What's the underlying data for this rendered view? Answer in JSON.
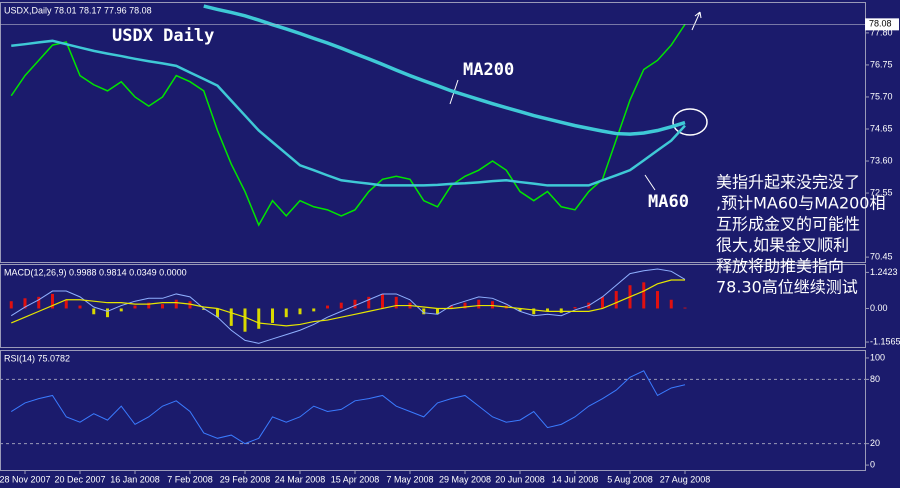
{
  "chart_data": [
    {
      "type": "line",
      "header": "USDX,Daily 78.01 78.17 77.96 78.08",
      "annotations": [
        "USDX Daily",
        "MA200",
        "MA60"
      ],
      "note_lines": [
        "美指升起来没完没了",
        ",预计MA60与MA200相",
        "互形成金叉的可能性",
        "很大,如果金叉顺利",
        "释放将助推美指向",
        "78.30高位继续测试"
      ],
      "ylim": [
        70.29,
        78.78
      ],
      "yticks": [
        {
          "value": 77.8,
          "label": "77.80"
        },
        76.75,
        {
          "value": 75.7,
          "label": "75.70"
        },
        74.65,
        {
          "value": 73.6,
          "label": "73.60"
        },
        72.55,
        70.45
      ],
      "last_price": {
        "value": 78.08,
        "label": "78.08"
      },
      "series": [
        {
          "name": "USDX",
          "color": "#00e600",
          "width": 1.5,
          "values": [
            75.74,
            76.4,
            76.9,
            77.4,
            77.5,
            76.4,
            76.1,
            75.9,
            76.2,
            75.7,
            75.4,
            75.7,
            76.4,
            76.2,
            75.9,
            74.6,
            73.5,
            72.6,
            71.5,
            72.3,
            71.8,
            72.3,
            72.1,
            72.0,
            71.8,
            72.0,
            72.6,
            73.0,
            73.1,
            73.0,
            72.3,
            72.1,
            72.8,
            73.1,
            73.3,
            73.6,
            73.3,
            72.6,
            72.3,
            72.6,
            72.1,
            72.0,
            72.6,
            73.0,
            74.3,
            75.6,
            76.6,
            76.9,
            77.4,
            78.08
          ]
        },
        {
          "name": "MA200",
          "color": "#3fc9d6",
          "width": 3.5,
          "values": [
            null,
            null,
            null,
            null,
            null,
            null,
            null,
            null,
            null,
            null,
            null,
            null,
            null,
            null,
            78.68,
            78.57,
            78.47,
            78.36,
            78.22,
            78.07,
            77.93,
            77.78,
            77.62,
            77.47,
            77.3,
            77.12,
            76.95,
            76.77,
            76.58,
            76.4,
            76.23,
            76.07,
            75.9,
            75.76,
            75.62,
            75.48,
            75.35,
            75.22,
            75.09,
            74.98,
            74.87,
            74.76,
            74.67,
            74.58,
            74.5,
            74.48,
            74.52,
            74.6,
            74.72,
            74.86
          ]
        },
        {
          "name": "MA60",
          "color": "#3fc9d6",
          "width": 2.5,
          "values": [
            77.38,
            77.43,
            77.49,
            77.54,
            77.43,
            77.32,
            77.21,
            77.12,
            77.04,
            76.95,
            76.87,
            76.8,
            76.72,
            76.5,
            76.29,
            76.07,
            75.58,
            75.09,
            74.6,
            74.22,
            73.84,
            73.46,
            73.3,
            73.13,
            72.97,
            72.91,
            72.86,
            72.8,
            72.8,
            72.8,
            72.8,
            72.82,
            72.85,
            72.87,
            72.9,
            72.94,
            72.97,
            72.91,
            72.86,
            72.8,
            72.8,
            72.8,
            72.8,
            72.97,
            73.13,
            73.3,
            73.62,
            73.95,
            74.27,
            74.76
          ]
        }
      ]
    },
    {
      "type": "bar",
      "header": "MACD(12,26,9) 0.9988 0.9814 0.0349 0.0000",
      "ylim": [
        -1.327,
        1.497
      ],
      "yticks": [
        1.2423,
        {
          "value": 0,
          "label": "0.00"
        },
        -1.1565
      ],
      "series": [
        {
          "name": "Histogram",
          "style": "histogram",
          "color": "#e01010",
          "negative_color": "#d8d800",
          "values": [
            0.25,
            0.35,
            0.4,
            0.5,
            0.3,
            0.1,
            -0.2,
            -0.3,
            -0.1,
            0.1,
            0.2,
            0.15,
            0.3,
            0.25,
            -0.05,
            -0.3,
            -0.6,
            -0.8,
            -0.7,
            -0.5,
            -0.3,
            -0.2,
            -0.1,
            0.1,
            0.2,
            0.3,
            0.4,
            0.5,
            0.4,
            0.2,
            -0.2,
            -0.2,
            0.1,
            0.2,
            0.3,
            0.25,
            0.1,
            -0.1,
            -0.2,
            -0.1,
            -0.15,
            0.05,
            0.2,
            0.4,
            0.6,
            0.8,
            0.9,
            0.6,
            0.3,
            0.03
          ]
        },
        {
          "name": "MACD",
          "color": "#8fb0ff",
          "width": 1,
          "values": [
            -0.25,
            0.05,
            0.3,
            0.6,
            0.6,
            0.4,
            0.05,
            -0.1,
            0.1,
            0.25,
            0.35,
            0.35,
            0.5,
            0.4,
            0,
            -0.3,
            -0.75,
            -1.1,
            -1.2,
            -1.05,
            -0.9,
            -0.75,
            -0.55,
            -0.3,
            -0.1,
            0.1,
            0.3,
            0.5,
            0.5,
            0.3,
            -0.15,
            -0.2,
            0.1,
            0.25,
            0.4,
            0.35,
            0.15,
            -0.1,
            -0.25,
            -0.2,
            -0.25,
            -0.05,
            0.1,
            0.4,
            0.8,
            1.2,
            1.3,
            1.36,
            1.28,
            0.9988
          ]
        },
        {
          "name": "Signal",
          "color": "#e6e600",
          "width": 1.2,
          "values": [
            -0.5,
            -0.3,
            -0.1,
            0.1,
            0.3,
            0.3,
            0.25,
            0.2,
            0.2,
            0.15,
            0.15,
            0.2,
            0.2,
            0.15,
            0.05,
            0,
            -0.15,
            -0.3,
            -0.5,
            -0.55,
            -0.6,
            -0.55,
            -0.45,
            -0.4,
            -0.3,
            -0.2,
            -0.1,
            0,
            0.1,
            0.1,
            0.05,
            0,
            0,
            0.05,
            0.1,
            0.1,
            0.05,
            0,
            -0.05,
            -0.1,
            -0.1,
            -0.1,
            -0.1,
            0,
            0.2,
            0.4,
            0.6,
            0.85,
            0.98,
            0.9814
          ]
        }
      ]
    },
    {
      "type": "line",
      "header": "RSI(14) 75.0782",
      "ylim": [
        -4.6,
        106.5
      ],
      "yticks": [
        100,
        80,
        20,
        0
      ],
      "levels": [
        80,
        20
      ],
      "categories": [
        null,
        "28 Nov 2007",
        null,
        null,
        null,
        "20 Dec 2007",
        null,
        null,
        null,
        "16 Jan 2008",
        null,
        null,
        null,
        "7 Feb 2008",
        null,
        null,
        null,
        "29 Feb 2008",
        null,
        null,
        null,
        "24 Mar 2008",
        null,
        null,
        null,
        "15 Apr 2008",
        null,
        null,
        null,
        "7 May 2008",
        null,
        null,
        null,
        "29 May 2008",
        null,
        null,
        null,
        "20 Jun 2008",
        null,
        null,
        null,
        "14 Jul 2008",
        null,
        null,
        null,
        "5 Aug 2008",
        null,
        null,
        null,
        "27 Aug 2008"
      ],
      "series": [
        {
          "name": "RSI",
          "color": "#3a7bff",
          "width": 1,
          "values": [
            50,
            58,
            62,
            65,
            45,
            40,
            48,
            42,
            55,
            38,
            45,
            55,
            60,
            50,
            30,
            25,
            28,
            20,
            25,
            45,
            40,
            45,
            55,
            50,
            52,
            60,
            62,
            65,
            55,
            50,
            45,
            58,
            62,
            65,
            55,
            45,
            40,
            42,
            50,
            35,
            38,
            45,
            55,
            62,
            70,
            82,
            88,
            65,
            72,
            75
          ]
        }
      ]
    }
  ]
}
